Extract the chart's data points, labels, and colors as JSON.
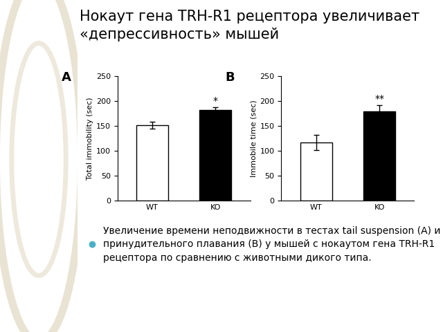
{
  "title_line1": "Нокаут гена TRH-R1 рецептора увеличивает",
  "title_line2": "«депрессивность» мышей",
  "bullet_text_line1": "Увеличение времени неподвижности в тестах tail suspension (A) и",
  "bullet_text_line2": "принудительного плавания (B) у мышей с нокаутом гена TRH-R1",
  "bullet_text_line3": "рецептора по сравнению с животными дикого типа.",
  "panel_A": {
    "label": "A",
    "ylabel": "Total immobility (sec)",
    "categories": [
      "WT",
      "KO"
    ],
    "values": [
      152,
      183
    ],
    "errors": [
      7,
      5
    ],
    "colors": [
      "white",
      "black"
    ],
    "ylim": [
      0,
      250
    ],
    "yticks": [
      0,
      50,
      100,
      150,
      200,
      250
    ],
    "significance": "*"
  },
  "panel_B": {
    "label": "B",
    "ylabel": "Immobile time (sec)",
    "categories": [
      "WT",
      "KO"
    ],
    "values": [
      117,
      180
    ],
    "errors": [
      15,
      12
    ],
    "colors": [
      "white",
      "black"
    ],
    "ylim": [
      0,
      250
    ],
    "yticks": [
      0,
      50,
      100,
      150,
      200,
      250
    ],
    "significance": "**"
  },
  "slide_bg": "#ffffff",
  "left_panel_color": "#e8dfc8",
  "chart_bg": "#ffffff",
  "bar_width": 0.5,
  "edge_color": "black",
  "title_fontsize": 15,
  "label_fontsize": 8,
  "tick_fontsize": 8,
  "panel_label_fontsize": 13,
  "sig_fontsize": 10,
  "bullet_fontsize": 10,
  "bullet_color": "#4ab0c8"
}
